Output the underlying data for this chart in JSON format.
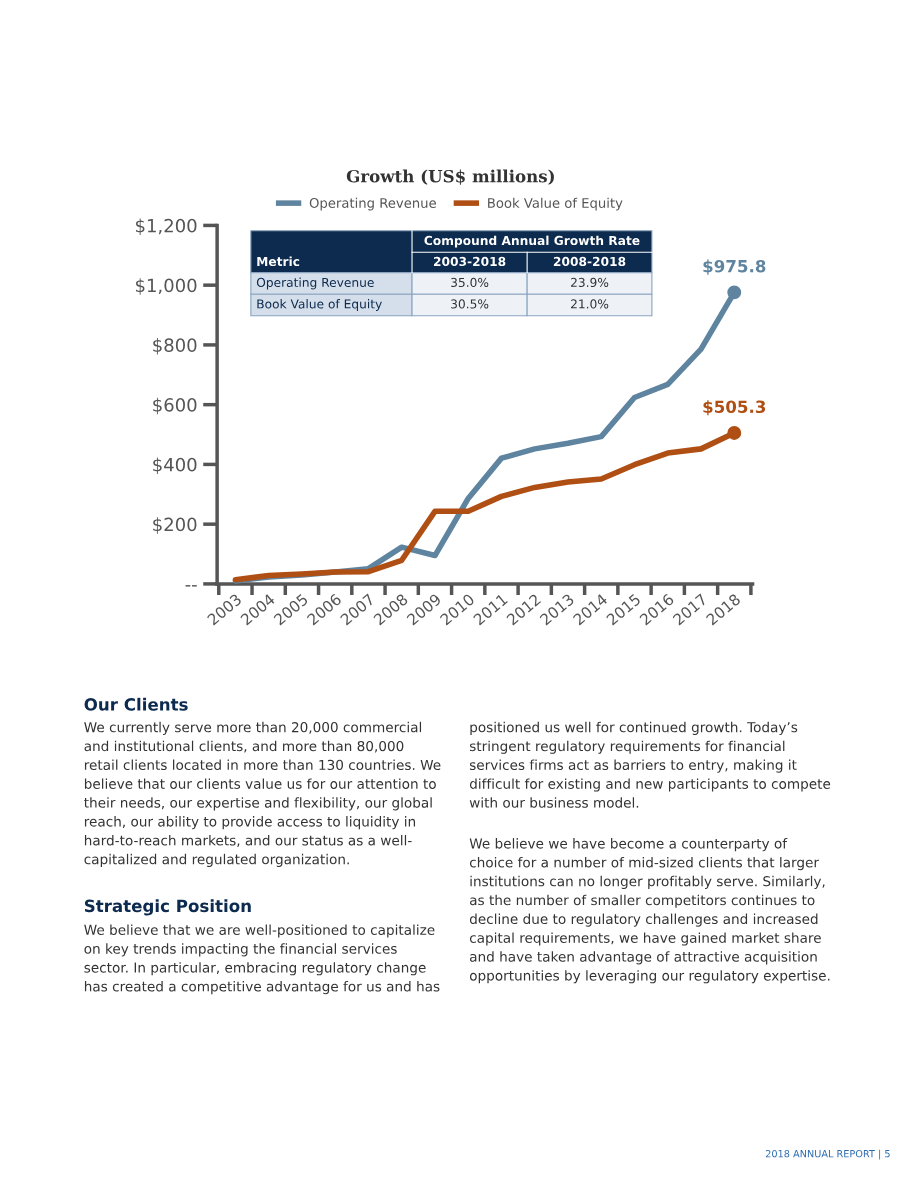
{
  "chart_data": [
    {
      "type": "line",
      "title": "Growth (US$ millions)",
      "categories": [
        "2003",
        "2004",
        "2005",
        "2006",
        "2007",
        "2008",
        "2009",
        "2010",
        "2011",
        "2012",
        "2013",
        "2014",
        "2015",
        "2016",
        "2017",
        "2018"
      ],
      "series": [
        {
          "name": "Operating Revenue",
          "color": "#5f84a0",
          "values": [
            10,
            23,
            30,
            40,
            51,
            123,
            95,
            286,
            421,
            452,
            471,
            493,
            624,
            668,
            786,
            975.8
          ],
          "value_labels": [
            null,
            null,
            null,
            null,
            null,
            null,
            null,
            null,
            null,
            null,
            null,
            null,
            null,
            null,
            null,
            "$975.8"
          ]
        },
        {
          "name": "Book Value of Equity",
          "color": "#b04f14",
          "values": [
            14,
            28,
            33,
            40,
            41,
            79,
            243,
            243,
            293,
            323,
            341,
            351,
            399,
            438,
            452,
            505.3
          ],
          "value_labels": [
            null,
            null,
            null,
            null,
            null,
            null,
            null,
            null,
            null,
            null,
            null,
            null,
            null,
            null,
            null,
            "$505.3"
          ]
        }
      ],
      "ylim": [
        0,
        1200
      ],
      "yticks": [
        {
          "value": 0,
          "label": "--"
        },
        {
          "value": 200,
          "label": "$200"
        },
        {
          "value": 400,
          "label": "$400"
        },
        {
          "value": 600,
          "label": "$600"
        },
        {
          "value": 800,
          "label": "$800"
        },
        {
          "value": 1000,
          "label": "$1,000"
        },
        {
          "value": 1200,
          "label": "$1,200"
        }
      ],
      "grid": false,
      "legend": "top",
      "marker": "none",
      "line_style": "solid",
      "annotations": [
        "Metric",
        "Compound Annual Growth Rate",
        "2003-2018",
        "2008-2018",
        "Operating Revenue",
        "35.0%",
        "23.9%",
        "Book Value of Equity",
        "30.5%",
        "21.0%"
      ]
    },
    {
      "type": "other",
      "annotations": [
        "Our Clients",
        "We currently serve more than 20,000 commercial\nand institutional clients, and more than 80,000\nretail clients located in more than 130 countries. We\nbelieve that our clients value us for our attention to\ntheir needs, our expertise and flexibility, our global\nreach, our ability to provide access to liquidity in\nhard-to-reach markets, and our status as a well-\ncapitalized and regulated organization.",
        "Strategic Position",
        "We believe that we are well-positioned to capitalize\non key trends impacting the financial services\nsector. In particular, embracing regulatory change\nhas created a competitive advantage for us and has",
        "positioned us well for continued growth. Today’s\nstringent regulatory requirements for financial\nservices firms act as barriers to entry, making it\ndifficult for existing and new participants to compete\nwith our business model.",
        "We believe we have become a counterparty of\nchoice for a number of mid-sized clients that larger\ninstitutions can no longer profitably serve. Similarly,\nas the number of smaller competitors continues to\ndecline due to regulatory challenges and increased\ncapital requirements, we have gained market share\nand have taken advantage of attractive acquisition\nopportunities by leveraging our regulatory expertise.",
        "2018 ANNUAL REPORT | 5"
      ]
    }
  ]
}
